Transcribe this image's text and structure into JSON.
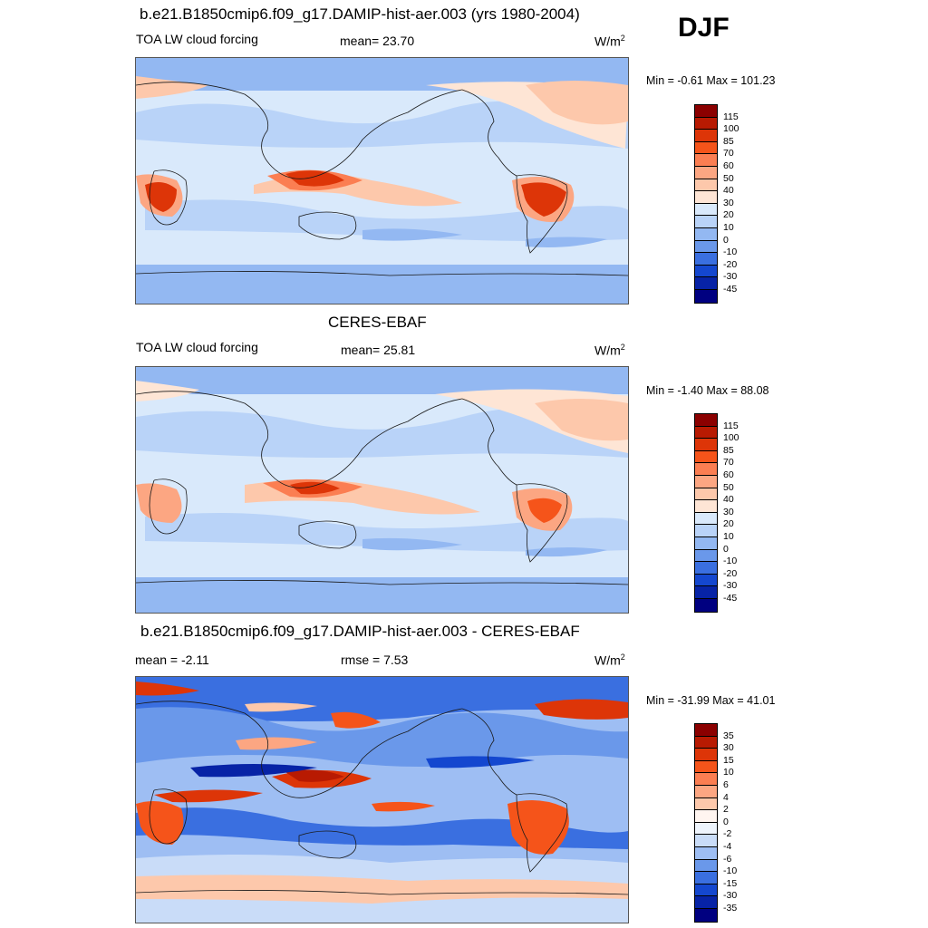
{
  "season": "DJF",
  "panels": [
    {
      "title": "b.e21.B1850cmip6.f09_g17.DAMIP-hist-aer.003 (yrs 1980-2004)",
      "left_text": "TOA LW cloud forcing",
      "center_text": "mean=  23.70",
      "units": "W/m",
      "units_sup": "2",
      "minmax": "Min =  -0.61 Max = 101.23",
      "colorbar": {
        "labels": [
          "115",
          "100",
          "85",
          "70",
          "60",
          "50",
          "40",
          "30",
          "20",
          "10",
          "0",
          "-10",
          "-20",
          "-30",
          "-45"
        ],
        "colors": [
          "#8b0000",
          "#b81a02",
          "#dd3508",
          "#f5541a",
          "#fb7e52",
          "#fca682",
          "#fdc8ab",
          "#fee5d5",
          "#d9e9fb",
          "#b9d3f8",
          "#93b8f2",
          "#6a98ea",
          "#3a6fe0",
          "#1447cf",
          "#0723a6",
          "#000080"
        ]
      }
    },
    {
      "title": "CERES-EBAF",
      "left_text": "TOA LW cloud forcing",
      "center_text": "mean=  25.81",
      "units": "W/m",
      "units_sup": "2",
      "minmax": "Min =  -1.40 Max =  88.08",
      "colorbar": {
        "labels": [
          "115",
          "100",
          "85",
          "70",
          "60",
          "50",
          "40",
          "30",
          "20",
          "10",
          "0",
          "-10",
          "-20",
          "-30",
          "-45"
        ],
        "colors": [
          "#8b0000",
          "#b81a02",
          "#dd3508",
          "#f5541a",
          "#fb7e52",
          "#fca682",
          "#fdc8ab",
          "#fee5d5",
          "#d9e9fb",
          "#b9d3f8",
          "#93b8f2",
          "#6a98ea",
          "#3a6fe0",
          "#1447cf",
          "#0723a6",
          "#000080"
        ]
      }
    },
    {
      "title": "b.e21.B1850cmip6.f09_g17.DAMIP-hist-aer.003 - CERES-EBAF",
      "left_text": "mean =  -2.11",
      "center_text": "rmse =   7.53",
      "units": "W/m",
      "units_sup": "2",
      "minmax": "Min = -31.99 Max =  41.01",
      "colorbar": {
        "labels": [
          "35",
          "30",
          "15",
          "10",
          "6",
          "4",
          "2",
          "0",
          "-2",
          "-4",
          "-6",
          "-10",
          "-15",
          "-30",
          "-35"
        ],
        "colors": [
          "#8b0000",
          "#b81a02",
          "#dd3508",
          "#f5541a",
          "#fb7e52",
          "#fca682",
          "#fdc8ab",
          "#fff5f0",
          "#eef4fc",
          "#c9dcf8",
          "#9ebef3",
          "#6a98ea",
          "#3a6fe0",
          "#1447cf",
          "#0723a6",
          "#000080"
        ]
      }
    }
  ]
}
